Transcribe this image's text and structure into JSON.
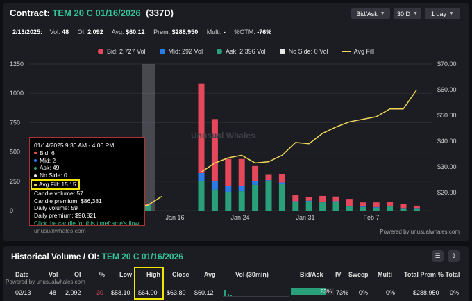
{
  "header": {
    "prefix": "Contract:",
    "ticker": "TEM 20 C 01/16/2026",
    "days": "(337D)",
    "controls": [
      {
        "label": "Bid/Ask"
      },
      {
        "label": "30 D"
      },
      {
        "label": "1 day"
      }
    ]
  },
  "stats": {
    "date": "2/13/2025:",
    "vol_label": "Vol:",
    "vol": "48",
    "oi_label": "OI:",
    "oi": "2,092",
    "avg_label": "Avg:",
    "avg": "$60.12",
    "prem_label": "Prem:",
    "prem": "$288,950",
    "multi_label": "Multi:",
    "multi": "-",
    "otm_label": "%OTM:",
    "otm": "-76%"
  },
  "legend": [
    {
      "label": "Bid: 2,727 Vol",
      "color": "#e5485a",
      "shape": "dot"
    },
    {
      "label": "Mid: 292 Vol",
      "color": "#2b7ce9",
      "shape": "dot"
    },
    {
      "label": "Ask: 2,396 Vol",
      "color": "#2aa07a",
      "shape": "dot"
    },
    {
      "label": "No Side: 0 Vol",
      "color": "#e8e8e8",
      "shape": "dot"
    },
    {
      "label": "Avg Fill",
      "color": "#f2d857",
      "shape": "line"
    }
  ],
  "colors": {
    "bid": "#e5485a",
    "mid": "#2b7ce9",
    "ask": "#2aa07a",
    "avg_fill": "#f2d857",
    "accent": "#35c49a",
    "highlight": "#f2e500"
  },
  "chart_data": {
    "type": "bar",
    "stacked": true,
    "left_axis": {
      "ticks": [
        "1250",
        "1000",
        "750",
        "500",
        "250",
        "0"
      ],
      "ylim": [
        0,
        1250
      ]
    },
    "right_axis": {
      "ticks": [
        "$70.00",
        "$60.00",
        "$50.00",
        "$40.00",
        "$30.00",
        "$20.00"
      ],
      "ylim": [
        13,
        70
      ]
    },
    "x_tick_labels": [
      "Jan 16",
      "Jan 24",
      "Jan 31",
      "Feb 7"
    ],
    "bars": [
      {
        "date": "01/14/2025",
        "bid": 6,
        "mid": 2,
        "ask": 49,
        "avg": 15.15
      },
      {
        "date": "01/21/2025",
        "bid": 760,
        "mid": 70,
        "ask": 250,
        "avg": 28.0
      },
      {
        "date": "01/22/2025",
        "bid": 525,
        "mid": 75,
        "ask": 180,
        "avg": 31.5
      },
      {
        "date": "01/23/2025",
        "bid": 230,
        "mid": 50,
        "ask": 160,
        "avg": 33.5
      },
      {
        "date": "01/24/2025",
        "bid": 230,
        "mid": 45,
        "ask": 165,
        "avg": 34.5
      },
      {
        "date": "01/27/2025",
        "bid": 130,
        "mid": 30,
        "ask": 220,
        "avg": 31.5
      },
      {
        "date": "01/28/2025",
        "bid": 45,
        "mid": 10,
        "ask": 250,
        "avg": 32.0
      },
      {
        "date": "01/29/2025",
        "bid": 70,
        "mid": 10,
        "ask": 230,
        "avg": 34.5
      },
      {
        "date": "01/30/2025",
        "bid": 50,
        "mid": 5,
        "ask": 75,
        "avg": 39.5
      },
      {
        "date": "01/31/2025",
        "bid": 30,
        "mid": 5,
        "ask": 80,
        "avg": 39.0
      },
      {
        "date": "02/03/2025",
        "bid": 50,
        "mid": 5,
        "ask": 70,
        "avg": 43.0
      },
      {
        "date": "02/04/2025",
        "bid": 40,
        "mid": 5,
        "ask": 75,
        "avg": 45.5
      },
      {
        "date": "02/05/2025",
        "bid": 60,
        "mid": 5,
        "ask": 35,
        "avg": 47.5
      },
      {
        "date": "02/06/2025",
        "bid": 35,
        "mid": 5,
        "ask": 30,
        "avg": 48.5
      },
      {
        "date": "02/07/2025",
        "bid": 40,
        "mid": 5,
        "ask": 25,
        "avg": 49.5
      },
      {
        "date": "02/10/2025",
        "bid": 35,
        "mid": 5,
        "ask": 35,
        "avg": 52.5
      },
      {
        "date": "02/11/2025",
        "bid": 35,
        "mid": 2,
        "ask": 20,
        "avg": 52.5
      },
      {
        "date": "02/12/2025",
        "bid": 20,
        "mid": 2,
        "ask": 20,
        "avg": 60.0
      }
    ],
    "pre_window_avg": [
      16.5,
      17.5,
      16.0,
      14.5,
      15.15,
      18.5
    ],
    "grid": true
  },
  "tooltip": {
    "title": "01/14/2025 9:30 AM - 4:00 PM",
    "bid": "Bid: 6",
    "mid": "Mid: 2",
    "ask": "Ask: 49",
    "noside": "No Side: 0",
    "avg_fill": "Avg Fill: 15.15",
    "candle_volume": "Candle volume: 57",
    "candle_premium": "Candle premium: $86,381",
    "daily_volume": "Daily volume: 59",
    "daily_premium": "Daily premium: $90,821",
    "hint": "Click the candle for this timeframe's flow",
    "watermark": "unusualwhales.com"
  },
  "watermark": "Unusual Whales",
  "powered": "Powered by unusualwhales.com",
  "history": {
    "title_prefix": "Historical Volume / OI:",
    "ticker": "TEM 20 C 01/16/2026",
    "powered": "Powered by unusualwhales.com",
    "columns": [
      "Date",
      "Vol",
      "OI",
      "%",
      "Low",
      "High",
      "Close",
      "Avg",
      "Vol (30min)",
      "Bid/Ask",
      "IV",
      "Sweep",
      "Multi",
      "Total Prem",
      "% Total"
    ],
    "row": {
      "date": "02/13",
      "vol": "48",
      "oi": "2,092",
      "pct": "-30",
      "low": "$58.10",
      "high": "$64.00",
      "close": "$63.80",
      "avg": "$60.12",
      "bidask": "83%",
      "bidask_fraction": 0.83,
      "iv": "73%",
      "sweep": "0%",
      "multi": "0%",
      "total_prem": "$288,950",
      "pct_total": "0%"
    }
  }
}
